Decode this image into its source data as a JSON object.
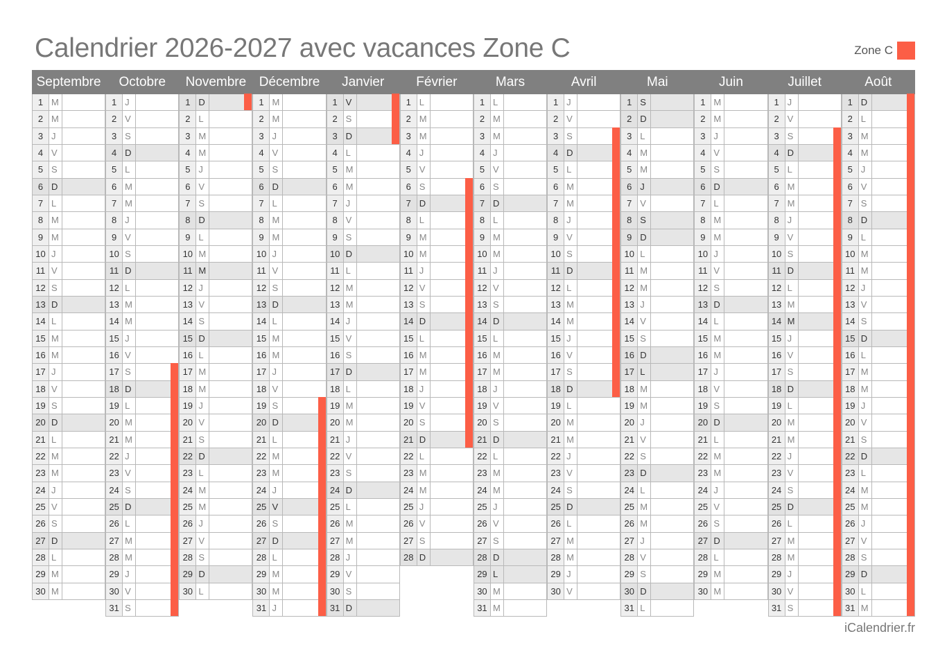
{
  "title": "Calendrier 2026-2027 avec vacances Zone C",
  "legend": {
    "label": "Zone C",
    "color": "#fc5e46"
  },
  "footer": "iCalendrier.fr",
  "colors": {
    "header_bg": "#808080",
    "shade": "#e6e6e6",
    "vacation": "#fc5e46"
  },
  "months": [
    {
      "name": "Septembre",
      "first_dow": 2,
      "days": 30,
      "holidays": [],
      "vacation": []
    },
    {
      "name": "Octobre",
      "first_dow": 4,
      "days": 31,
      "holidays": [],
      "vacation": [
        17,
        31
      ]
    },
    {
      "name": "Novembre",
      "first_dow": 0,
      "days": 30,
      "holidays": [
        1,
        11
      ],
      "vacation": [
        1,
        1
      ]
    },
    {
      "name": "Décembre",
      "first_dow": 2,
      "days": 31,
      "holidays": [
        25
      ],
      "vacation": [
        19,
        31
      ]
    },
    {
      "name": "Janvier",
      "first_dow": 5,
      "days": 31,
      "holidays": [
        1
      ],
      "vacation": [
        1,
        3
      ]
    },
    {
      "name": "Février",
      "first_dow": 1,
      "days": 28,
      "holidays": [],
      "vacation": [
        6,
        21
      ]
    },
    {
      "name": "Mars",
      "first_dow": 1,
      "days": 31,
      "holidays": [
        29
      ],
      "vacation": []
    },
    {
      "name": "Avril",
      "first_dow": 4,
      "days": 30,
      "holidays": [],
      "vacation": [
        3,
        18
      ]
    },
    {
      "name": "Mai",
      "first_dow": 6,
      "days": 31,
      "holidays": [
        1,
        6,
        8,
        17
      ],
      "vacation": []
    },
    {
      "name": "Juin",
      "first_dow": 2,
      "days": 30,
      "holidays": [],
      "vacation": []
    },
    {
      "name": "Juillet",
      "first_dow": 4,
      "days": 31,
      "holidays": [
        14
      ],
      "vacation": [
        3,
        31
      ]
    },
    {
      "name": "Août",
      "first_dow": 0,
      "days": 31,
      "holidays": [
        15
      ],
      "vacation": [
        1,
        31
      ]
    }
  ],
  "day_letters": [
    "D",
    "L",
    "M",
    "M",
    "J",
    "V",
    "S"
  ]
}
